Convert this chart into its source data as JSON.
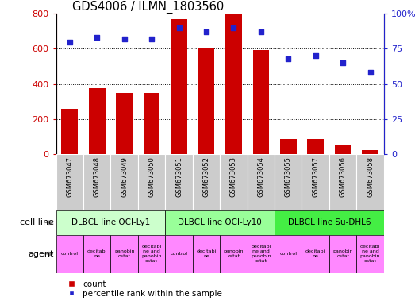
{
  "title": "GDS4006 / ILMN_1803560",
  "samples": [
    "GSM673047",
    "GSM673048",
    "GSM673049",
    "GSM673050",
    "GSM673051",
    "GSM673052",
    "GSM673053",
    "GSM673054",
    "GSM673055",
    "GSM673057",
    "GSM673056",
    "GSM673058"
  ],
  "counts": [
    258,
    375,
    350,
    350,
    770,
    605,
    795,
    595,
    85,
    85,
    55,
    22
  ],
  "percentiles": [
    80,
    83,
    82,
    82,
    90,
    87,
    90,
    87,
    68,
    70,
    65,
    58
  ],
  "bar_color": "#cc0000",
  "dot_color": "#2222cc",
  "ylim_left": [
    0,
    800
  ],
  "ylim_right": [
    0,
    100
  ],
  "yticks_left": [
    0,
    200,
    400,
    600,
    800
  ],
  "yticks_right": [
    0,
    25,
    50,
    75,
    100
  ],
  "ytick_labels_right": [
    "0",
    "25",
    "50",
    "75",
    "100%"
  ],
  "cell_groups": [
    {
      "label": "DLBCL line OCI-Ly1",
      "start": 0,
      "end": 4,
      "color": "#ccffcc"
    },
    {
      "label": "DLBCL line OCI-Ly10",
      "start": 4,
      "end": 8,
      "color": "#99ff99"
    },
    {
      "label": "DLBCL line Su-DHL6",
      "start": 8,
      "end": 12,
      "color": "#44ee44"
    }
  ],
  "agent_labels": [
    "control",
    "decitabi\nne",
    "panobin\nostat",
    "decitabi\nne and\npanobin\nostat",
    "control",
    "decitabi\nne",
    "panobin\nostat",
    "decitabi\nne and\npanobin\nostat",
    "control",
    "decitabi\nne",
    "panobin\nostat",
    "decitabi\nne and\npanobin\nostat"
  ],
  "agent_color": "#ff88ff",
  "sample_bg_color": "#cccccc",
  "left_axis_color": "#cc0000",
  "right_axis_color": "#2222cc",
  "label_left_text": [
    "cell line",
    "agent"
  ],
  "legend_labels": [
    "count",
    "percentile rank within the sample"
  ]
}
